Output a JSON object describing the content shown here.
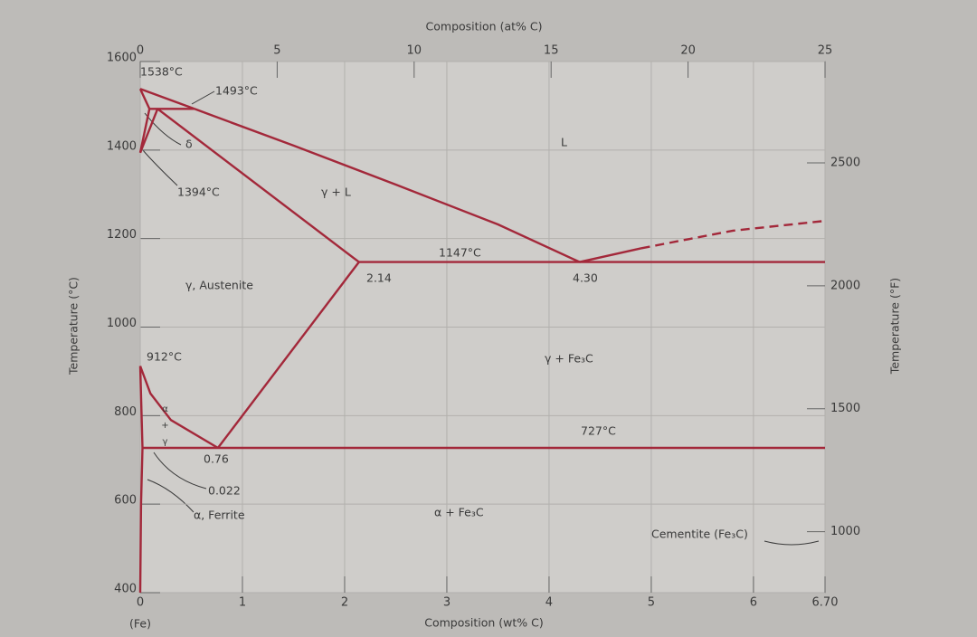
{
  "chart_data": {
    "type": "line",
    "x_label": "Composition (wt% C)",
    "x2_label": "Composition (at% C)",
    "y_label": "Temperature (°C)",
    "y2_label": "Temperature (°F)",
    "x_note": "(Fe)",
    "xlim": [
      0,
      6.7
    ],
    "xticks": [
      0,
      1,
      2,
      3,
      4,
      5,
      6,
      {
        "value": 6.7,
        "label": "6.70"
      }
    ],
    "x2lim": [
      0,
      25
    ],
    "x2ticks": [
      0,
      5,
      10,
      15,
      20,
      25
    ],
    "ylim": [
      400,
      1600
    ],
    "yticks": [
      400,
      600,
      800,
      1000,
      1200,
      1400,
      1600
    ],
    "y2lim": [
      752,
      2912
    ],
    "y2ticks": [
      1000,
      1500,
      2000,
      2500
    ],
    "grid": true,
    "color": "#a3283a",
    "series": [
      {
        "x": [
          0,
          0.53
        ],
        "values": [
          1538,
          1493
        ]
      },
      {
        "x": [
          0.53,
          1.5,
          2.5,
          3.5,
          4.3
        ],
        "values": [
          1493,
          1410,
          1322,
          1232,
          1147
        ]
      },
      {
        "x": [
          4.3,
          4.9
        ],
        "values": [
          1147,
          1178
        ]
      },
      {
        "x": [
          4.9,
          5.8,
          6.7
        ],
        "values": [
          1178,
          1218,
          1240
        ],
        "dashed": true
      },
      {
        "x": [
          0.09,
          0.53
        ],
        "values": [
          1493,
          1493
        ]
      },
      {
        "x": [
          0,
          0.09
        ],
        "values": [
          1538,
          1493
        ]
      },
      {
        "x": [
          0,
          0.09
        ],
        "values": [
          1394,
          1493
        ]
      },
      {
        "x": [
          0,
          0.17
        ],
        "values": [
          1394,
          1493
        ]
      },
      {
        "x": [
          0.17,
          2.14
        ],
        "values": [
          1493,
          1147
        ]
      },
      {
        "x": [
          2.14,
          6.7
        ],
        "values": [
          1147,
          1147
        ]
      },
      {
        "x": [
          2.14,
          0.76
        ],
        "values": [
          1147,
          727
        ]
      },
      {
        "x": [
          0,
          0.1,
          0.3,
          0.76
        ],
        "values": [
          912,
          850,
          790,
          727
        ]
      },
      {
        "x": [
          0,
          0.022
        ],
        "values": [
          912,
          727
        ]
      },
      {
        "x": [
          0.022,
          6.7
        ],
        "values": [
          727,
          727
        ]
      },
      {
        "x": [
          0.022,
          0.008,
          0
        ],
        "values": [
          727,
          600,
          400
        ]
      }
    ],
    "annotations": [
      "1538°C",
      "1493°C",
      "δ",
      "1394°C",
      "γ + L",
      "L",
      "1147°C",
      "2.14",
      "4.30",
      "γ, Austenite",
      "912°C",
      "γ + Fe₃C",
      "727°C",
      "0.76",
      "0.022",
      "α, Ferrite",
      "α + Fe₃C",
      "Cementite (Fe₃C)",
      "α + γ"
    ]
  }
}
